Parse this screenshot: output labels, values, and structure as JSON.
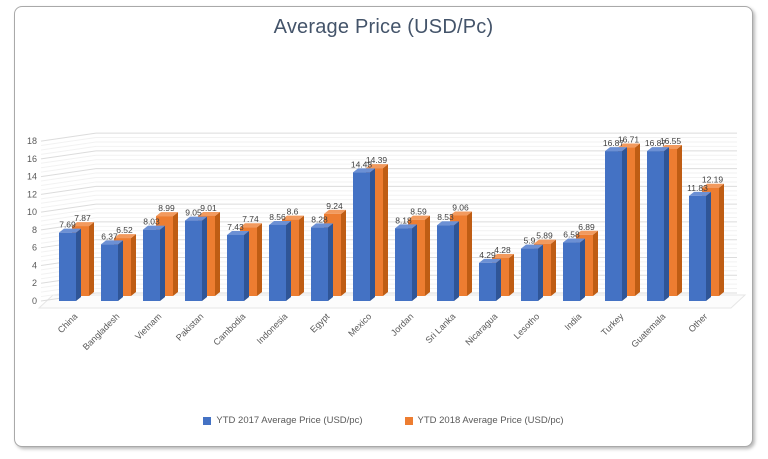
{
  "chart_data": {
    "type": "bar",
    "effect": "3d-clustered",
    "title": "Average Price (USD/Pc)",
    "categories": [
      "China",
      "Bangladesh",
      "Vietnam",
      "Pakistan",
      "Cambodia",
      "Indonesia",
      "Egypt",
      "Mexico",
      "Jordan",
      "Sri Lanka",
      "Nicaragua",
      "Lesotho",
      "India",
      "Turkey",
      "Guatemala",
      "Other"
    ],
    "series": [
      {
        "name": "YTD 2017 Average Price (USD/pc)",
        "color": "#4472c4",
        "color_top": "#6c90d4",
        "color_side": "#2f5597",
        "values": [
          7.69,
          6.37,
          8.03,
          9.05,
          7.43,
          8.56,
          8.28,
          14.48,
          8.18,
          8.53,
          4.29,
          5.9,
          6.58,
          16.87,
          16.87,
          11.83
        ]
      },
      {
        "name": "YTD 2018 Average Price (USD/pc)",
        "color": "#ed7d31",
        "color_top": "#f29a5e",
        "color_side": "#bf5d14",
        "values": [
          7.87,
          6.52,
          8.99,
          9.01,
          7.74,
          8.6,
          9.24,
          14.39,
          8.59,
          9.06,
          4.28,
          5.89,
          6.89,
          16.71,
          16.55,
          12.19
        ]
      }
    ],
    "xlabel": "",
    "ylabel": "",
    "ylim": [
      0,
      18
    ],
    "ytick_step": 2,
    "grid": true,
    "legend_position": "bottom"
  },
  "colors": {
    "title_text": "#44546a",
    "axis_text": "#595959",
    "data_label_text": "#404040",
    "gridline_major": "#dcdcdc",
    "gridline_minor": "#f2f2f2",
    "floor_fill": "#fcfcfc",
    "floor_stroke": "#e6e6e6",
    "frame_border": "#a9a9a9"
  }
}
